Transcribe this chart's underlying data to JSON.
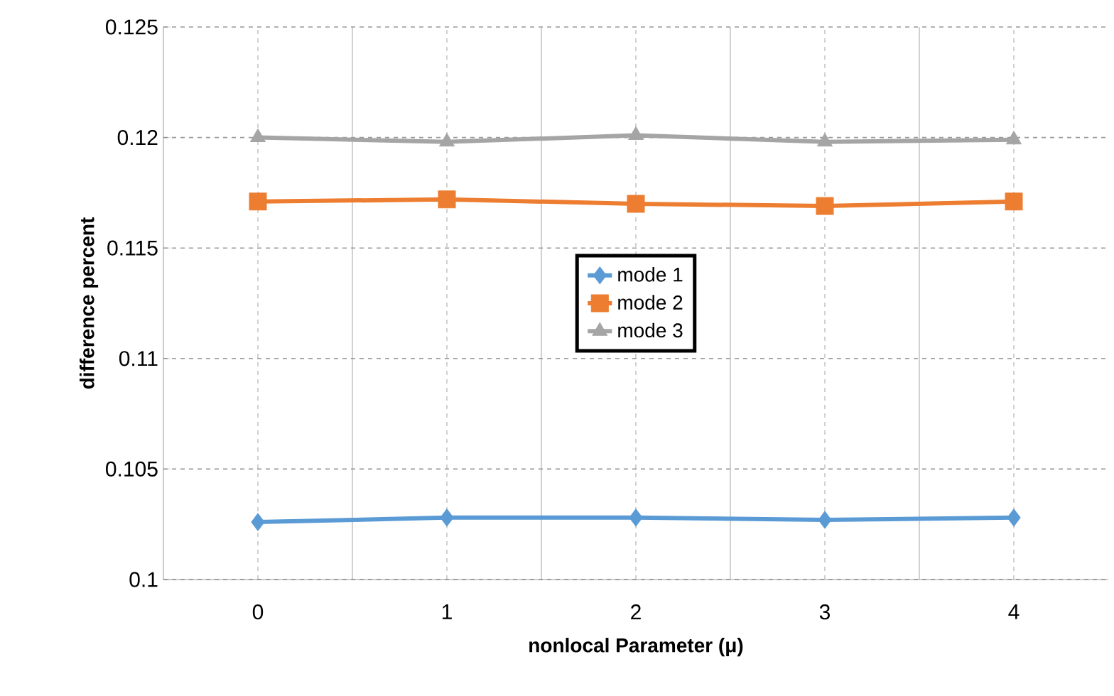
{
  "chart_data": {
    "type": "line",
    "xlabel": "nonlocal Parameter (μ)",
    "ylabel": "difference percent",
    "categories": [
      "0",
      "1",
      "2",
      "3",
      "4"
    ],
    "series": [
      {
        "name": "mode 1",
        "color": "#5b9bd5",
        "marker": "diamond",
        "values": [
          0.1026,
          0.1028,
          0.1028,
          0.1027,
          0.1028
        ]
      },
      {
        "name": "mode 2",
        "color": "#ed7d31",
        "marker": "square",
        "values": [
          0.1171,
          0.1172,
          0.117,
          0.1169,
          0.1171
        ]
      },
      {
        "name": "mode 3",
        "color": "#a5a5a5",
        "marker": "triangle",
        "values": [
          0.12,
          0.1198,
          0.1201,
          0.1198,
          0.1199
        ]
      }
    ],
    "ylim": [
      0.1,
      0.125
    ],
    "yticks": [
      0.1,
      0.105,
      0.11,
      0.115,
      0.12,
      0.125
    ],
    "grid": true,
    "legend": "center"
  }
}
